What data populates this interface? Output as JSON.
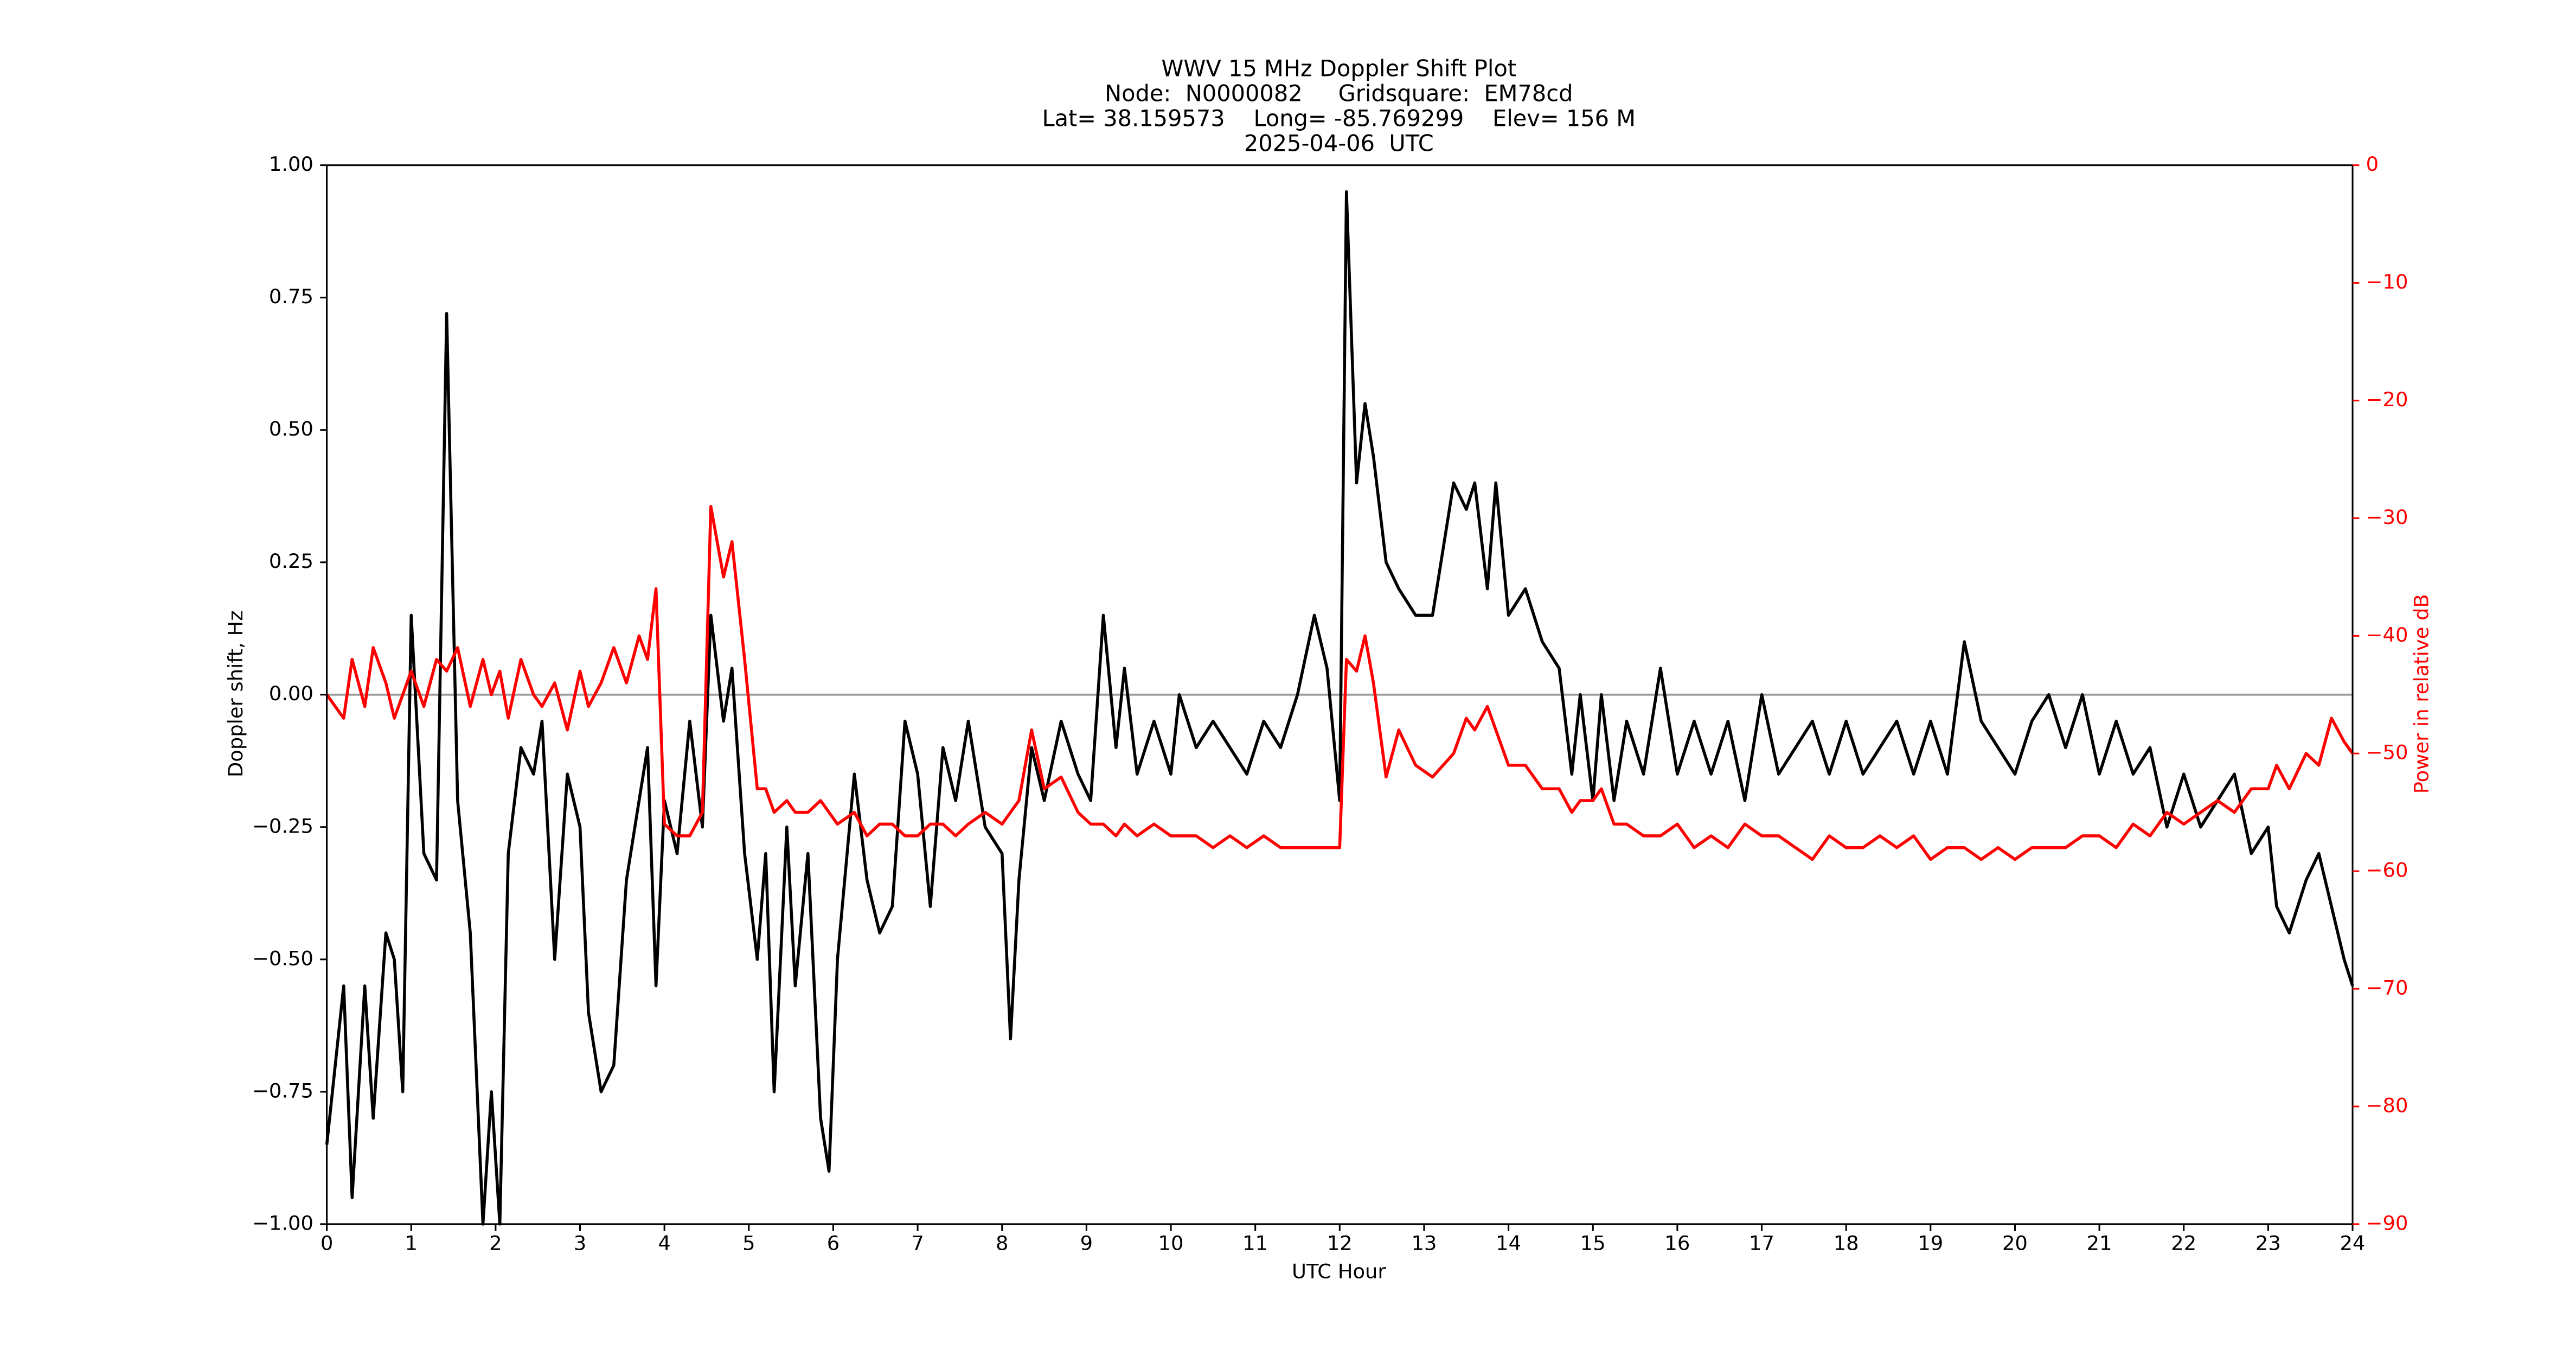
{
  "chart_data": {
    "type": "line",
    "title": [
      "WWV 15 MHz Doppler Shift Plot",
      "Node:  N0000082     Gridsquare:  EM78cd",
      "Lat= 38.159573    Long= -85.769299    Elev= 156 M",
      "2025-04-06  UTC"
    ],
    "xlabel": "UTC Hour",
    "ylabel": "Doppler shift, Hz",
    "y2label": "Power in relative dB",
    "y2color": "#ff0000",
    "hline": 0,
    "hline_color": "#999999",
    "xlim": [
      0,
      24
    ],
    "xticks": [
      0,
      1,
      2,
      3,
      4,
      5,
      6,
      7,
      8,
      9,
      10,
      11,
      12,
      13,
      14,
      15,
      16,
      17,
      18,
      19,
      20,
      21,
      22,
      23,
      24
    ],
    "ylim": [
      -1,
      1
    ],
    "yticks": [
      {
        "value": -1,
        "label": "−1.00"
      },
      {
        "value": -0.75,
        "label": "−0.75"
      },
      {
        "value": -0.5,
        "label": "−0.50"
      },
      {
        "value": -0.25,
        "label": "−0.25"
      },
      {
        "value": 0,
        "label": "0.00"
      },
      0.25,
      {
        "value": 0.5,
        "label": "0.50"
      },
      0.75,
      {
        "value": 1,
        "label": "1.00"
      }
    ],
    "y2lim": [
      -90,
      0
    ],
    "y2ticks": [
      {
        "value": -90,
        "label": "−90"
      },
      {
        "value": -80,
        "label": "−80"
      },
      {
        "value": -70,
        "label": "−70"
      },
      {
        "value": -60,
        "label": "−60"
      },
      {
        "value": -50,
        "label": "−50"
      },
      {
        "value": -40,
        "label": "−40"
      },
      {
        "value": -30,
        "label": "−30"
      },
      {
        "value": -20,
        "label": "−20"
      },
      {
        "value": -10,
        "label": "−10"
      },
      0
    ],
    "x": [
      0,
      0.2,
      0.3,
      0.45,
      0.55,
      0.7,
      0.8,
      0.9,
      1.0,
      1.15,
      1.3,
      1.42,
      1.55,
      1.7,
      1.85,
      1.95,
      2.05,
      2.15,
      2.3,
      2.45,
      2.55,
      2.7,
      2.85,
      3.0,
      3.1,
      3.25,
      3.4,
      3.55,
      3.7,
      3.8,
      3.9,
      4.0,
      4.15,
      4.3,
      4.45,
      4.55,
      4.7,
      4.8,
      4.95,
      5.1,
      5.2,
      5.3,
      5.45,
      5.55,
      5.7,
      5.85,
      5.95,
      6.05,
      6.25,
      6.4,
      6.55,
      6.7,
      6.85,
      7.0,
      7.15,
      7.3,
      7.45,
      7.6,
      7.8,
      8.0,
      8.1,
      8.2,
      8.35,
      8.5,
      8.7,
      8.9,
      9.05,
      9.2,
      9.35,
      9.45,
      9.6,
      9.8,
      10.0,
      10.1,
      10.3,
      10.5,
      10.7,
      10.9,
      11.1,
      11.3,
      11.5,
      11.7,
      11.85,
      12.0,
      12.08,
      12.2,
      12.3,
      12.4,
      12.55,
      12.7,
      12.9,
      13.1,
      13.35,
      13.5,
      13.6,
      13.75,
      13.85,
      14.0,
      14.2,
      14.4,
      14.6,
      14.75,
      14.85,
      15.0,
      15.1,
      15.25,
      15.4,
      15.6,
      15.8,
      16.0,
      16.2,
      16.4,
      16.6,
      16.8,
      17.0,
      17.2,
      17.4,
      17.6,
      17.8,
      18.0,
      18.2,
      18.4,
      18.6,
      18.8,
      19.0,
      19.2,
      19.4,
      19.6,
      19.8,
      20.0,
      20.2,
      20.4,
      20.6,
      20.8,
      21.0,
      21.2,
      21.4,
      21.6,
      21.8,
      22.0,
      22.2,
      22.4,
      22.6,
      22.8,
      23.0,
      23.1,
      23.25,
      23.45,
      23.6,
      23.75,
      23.9,
      24.0
    ],
    "series": [
      {
        "color": "#000000",
        "values": [
          -0.85,
          -0.55,
          -0.95,
          -0.55,
          -0.8,
          -0.45,
          -0.5,
          -0.75,
          0.15,
          -0.3,
          -0.35,
          0.72,
          -0.2,
          -0.45,
          -1.0,
          -0.75,
          -1.0,
          -0.3,
          -0.1,
          -0.15,
          -0.05,
          -0.5,
          -0.15,
          -0.25,
          -0.6,
          -0.75,
          -0.7,
          -0.35,
          -0.2,
          -0.1,
          -0.55,
          -0.2,
          -0.3,
          -0.05,
          -0.25,
          0.15,
          -0.05,
          0.05,
          -0.3,
          -0.5,
          -0.3,
          -0.75,
          -0.25,
          -0.55,
          -0.3,
          -0.8,
          -0.9,
          -0.5,
          -0.15,
          -0.35,
          -0.45,
          -0.4,
          -0.05,
          -0.15,
          -0.4,
          -0.1,
          -0.2,
          -0.05,
          -0.25,
          -0.3,
          -0.65,
          -0.35,
          -0.1,
          -0.2,
          -0.05,
          -0.15,
          -0.2,
          0.15,
          -0.1,
          0.05,
          -0.15,
          -0.05,
          -0.15,
          0.0,
          -0.1,
          -0.05,
          -0.1,
          -0.15,
          -0.05,
          -0.1,
          0.0,
          0.15,
          0.05,
          -0.2,
          0.95,
          0.4,
          0.55,
          0.45,
          0.25,
          0.2,
          0.15,
          0.15,
          0.4,
          0.35,
          0.4,
          0.2,
          0.4,
          0.15,
          0.2,
          0.1,
          0.05,
          -0.15,
          0.0,
          -0.2,
          0.0,
          -0.2,
          -0.05,
          -0.15,
          0.05,
          -0.15,
          -0.05,
          -0.15,
          -0.05,
          -0.2,
          0.0,
          -0.15,
          -0.1,
          -0.05,
          -0.15,
          -0.05,
          -0.15,
          -0.1,
          -0.05,
          -0.15,
          -0.05,
          -0.15,
          0.1,
          -0.05,
          -0.1,
          -0.15,
          -0.05,
          0.0,
          -0.1,
          0.0,
          -0.15,
          -0.05,
          -0.15,
          -0.1,
          -0.25,
          -0.15,
          -0.25,
          -0.2,
          -0.15,
          -0.3,
          -0.25,
          -0.4,
          -0.45,
          -0.35,
          -0.3,
          -0.4,
          -0.5,
          -0.55
        ]
      },
      {
        "color": "#ff0000",
        "axis": "y2",
        "values": [
          -45,
          -47,
          -42,
          -46,
          -41,
          -44,
          -47,
          -45,
          -43,
          -46,
          -42,
          -43,
          -41,
          -46,
          -42,
          -45,
          -43,
          -47,
          -42,
          -45,
          -46,
          -44,
          -48,
          -43,
          -46,
          -44,
          -41,
          -44,
          -40,
          -42,
          -36,
          -56,
          -57,
          -57,
          -55,
          -29,
          -35,
          -32,
          -42,
          -53,
          -53,
          -55,
          -54,
          -55,
          -55,
          -54,
          -55,
          -56,
          -55,
          -57,
          -56,
          -56,
          -57,
          -57,
          -56,
          -56,
          -57,
          -56,
          -55,
          -56,
          -55,
          -54,
          -48,
          -53,
          -52,
          -55,
          -56,
          -56,
          -57,
          -56,
          -57,
          -56,
          -57,
          -57,
          -57,
          -58,
          -57,
          -58,
          -57,
          -58,
          -58,
          -58,
          -58,
          -58,
          -42,
          -43,
          -40,
          -44,
          -52,
          -48,
          -51,
          -52,
          -50,
          -47,
          -48,
          -46,
          -48,
          -51,
          -51,
          -53,
          -53,
          -55,
          -54,
          -54,
          -53,
          -56,
          -56,
          -57,
          -57,
          -56,
          -58,
          -57,
          -58,
          -56,
          -57,
          -57,
          -58,
          -59,
          -57,
          -58,
          -58,
          -57,
          -58,
          -57,
          -59,
          -58,
          -58,
          -59,
          -58,
          -59,
          -58,
          -58,
          -58,
          -57,
          -57,
          -58,
          -56,
          -57,
          -55,
          -56,
          -55,
          -54,
          -55,
          -53,
          -53,
          -51,
          -53,
          -50,
          -51,
          -47,
          -49,
          -50
        ]
      }
    ]
  }
}
